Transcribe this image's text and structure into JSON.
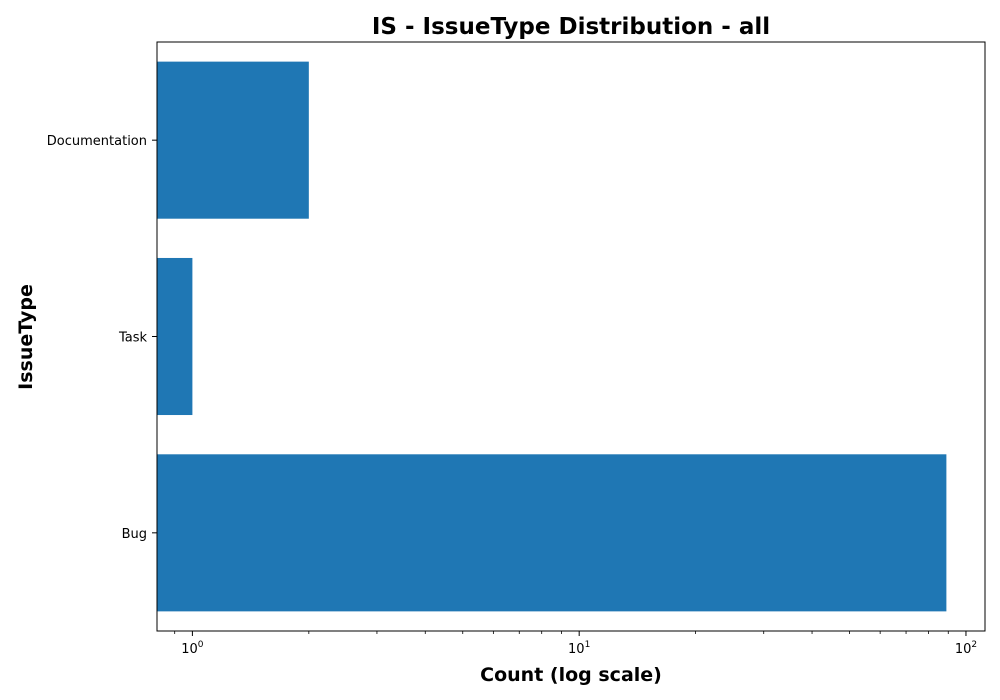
{
  "chart_data": {
    "type": "bar",
    "orientation": "horizontal",
    "title": "IS - IssueType Distribution - all",
    "xlabel": "Count (log scale)",
    "ylabel": "IssueType",
    "xscale": "log",
    "xlim": [
      0.81,
      112
    ],
    "categories": [
      "Bug",
      "Task",
      "Documentation"
    ],
    "series": [
      {
        "values": [
          89,
          1,
          2
        ]
      }
    ],
    "x_ticks": [
      {
        "base": "10",
        "exp": "0",
        "value": 1
      },
      {
        "base": "10",
        "exp": "1",
        "value": 10
      },
      {
        "base": "10",
        "exp": "2",
        "value": 100
      }
    ],
    "bar_color": "#1f77b4",
    "grid": false,
    "legend": "none"
  }
}
